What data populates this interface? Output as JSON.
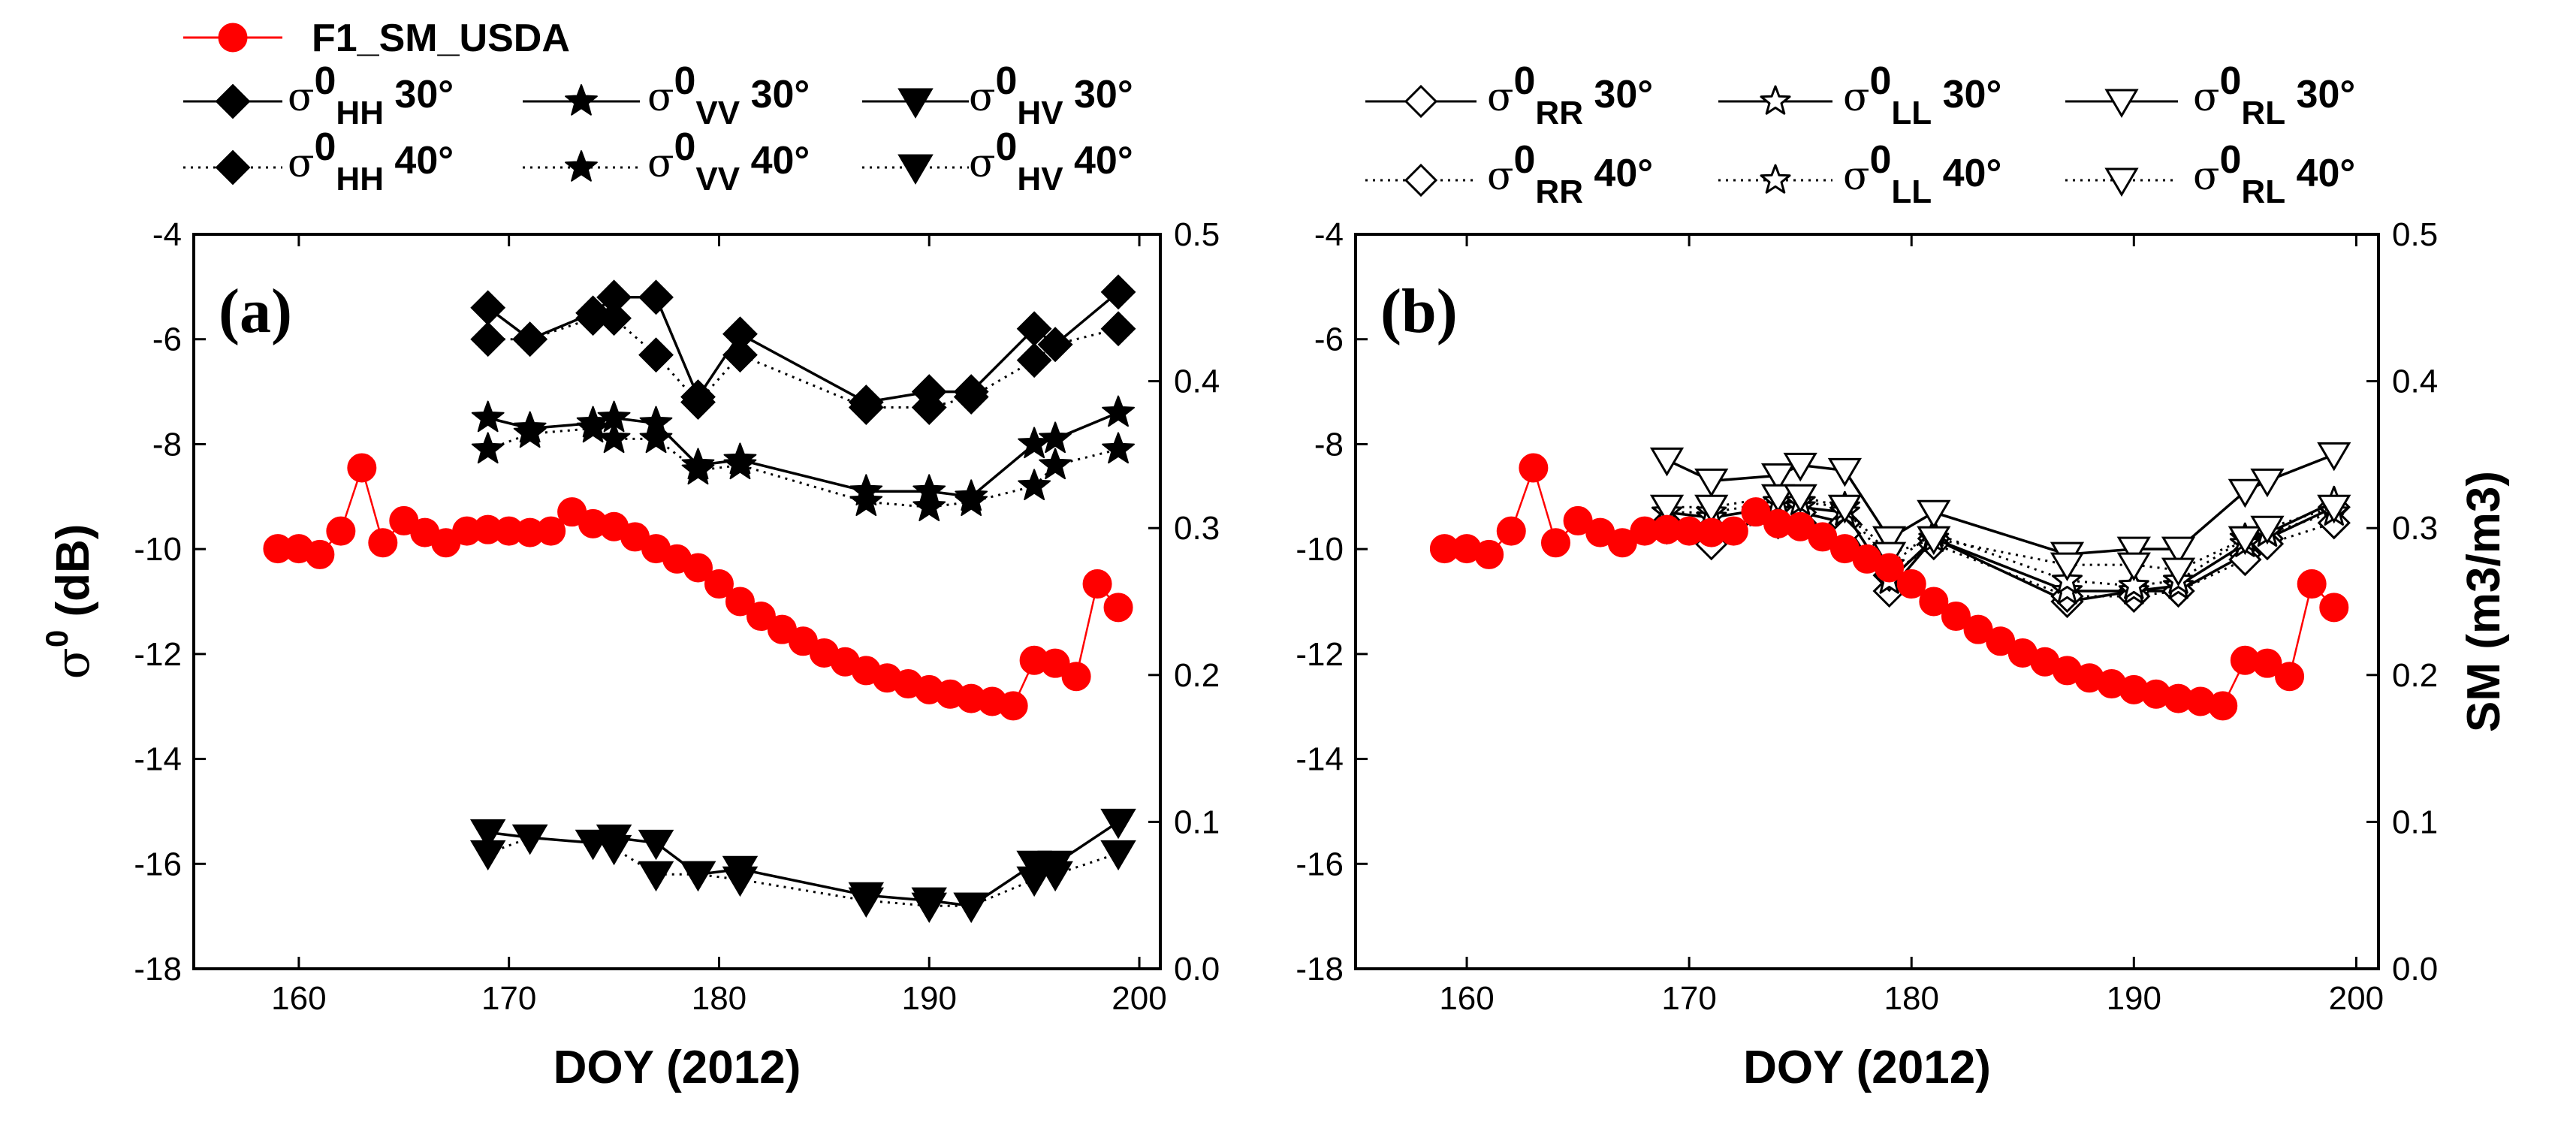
{
  "chart_data": [
    {
      "type": "line",
      "panel_label": "(a)",
      "xlabel": "DOY (2012)",
      "ylabel": "σ0 (dB)",
      "ylabel_base": "σ",
      "ylabel_sup": "0",
      "ylabel_unit": " (dB)",
      "y2label": "",
      "xlim": [
        155,
        201
      ],
      "ylim": [
        -18,
        -4
      ],
      "y2lim": [
        0.0,
        0.5
      ],
      "xticks": [
        "160",
        "170",
        "180",
        "190",
        "200"
      ],
      "yticks": [
        "-18",
        "-16",
        "-14",
        "-12",
        "-10",
        "-8",
        "-6",
        "-4"
      ],
      "y2ticks": [
        "0.0",
        "0.1",
        "0.2",
        "0.3",
        "0.4",
        "0.5"
      ],
      "legend": {
        "f1": "F1_SM_USDA",
        "base": "σ",
        "sup": "0",
        "hh": "HH",
        "vv": "VV",
        "hv": "HV",
        "angle30": "30°",
        "angle40": "40°"
      },
      "series": [
        {
          "name": "σ0HH 30°",
          "marker": "diamond",
          "style": "solid",
          "x": [
            169,
            171,
            174,
            175,
            177,
            179,
            181,
            187,
            190,
            192,
            195,
            196,
            199
          ],
          "y": [
            -5.4,
            -6.0,
            -5.5,
            -5.2,
            -5.2,
            -7.1,
            -5.9,
            -7.2,
            -7.0,
            -7.0,
            -5.8,
            -6.1,
            -5.1
          ]
        },
        {
          "name": "σ0HH 40°",
          "marker": "diamond",
          "style": "dotted",
          "x": [
            169,
            171,
            174,
            175,
            177,
            179,
            181,
            187,
            190,
            192,
            195,
            196,
            199
          ],
          "y": [
            -6.0,
            -6.0,
            -5.6,
            -5.6,
            -6.3,
            -7.2,
            -6.3,
            -7.3,
            -7.3,
            -7.1,
            -6.4,
            -6.1,
            -5.8
          ]
        },
        {
          "name": "σ0VV 30°",
          "marker": "star",
          "style": "solid",
          "x": [
            169,
            171,
            174,
            175,
            177,
            179,
            181,
            187,
            190,
            192,
            195,
            196,
            199
          ],
          "y": [
            -7.5,
            -7.7,
            -7.6,
            -7.5,
            -7.6,
            -8.4,
            -8.3,
            -8.9,
            -8.9,
            -9.0,
            -8.0,
            -7.9,
            -7.4
          ]
        },
        {
          "name": "σ0VV 40°",
          "marker": "star",
          "style": "dotted",
          "x": [
            169,
            171,
            174,
            175,
            177,
            179,
            181,
            187,
            190,
            192,
            195,
            196,
            199
          ],
          "y": [
            -8.1,
            -7.8,
            -7.7,
            -7.9,
            -7.9,
            -8.5,
            -8.4,
            -9.1,
            -9.2,
            -9.1,
            -8.8,
            -8.4,
            -8.1
          ]
        },
        {
          "name": "σ0HV 30°",
          "marker": "triangle-down",
          "style": "solid",
          "x": [
            169,
            171,
            174,
            175,
            177,
            179,
            181,
            187,
            190,
            192,
            195,
            196,
            199
          ],
          "y": [
            -15.4,
            -15.5,
            -15.6,
            -15.5,
            -15.6,
            -16.2,
            -16.1,
            -16.6,
            -16.7,
            -16.8,
            -16.0,
            -16.0,
            -15.2
          ]
        },
        {
          "name": "σ0HV 40°",
          "marker": "triangle-down",
          "style": "dotted",
          "x": [
            169,
            171,
            174,
            175,
            177,
            179,
            181,
            187,
            190,
            192,
            195,
            196,
            199
          ],
          "y": [
            -15.8,
            -15.5,
            -15.6,
            -15.7,
            -16.2,
            -16.2,
            -16.3,
            -16.7,
            -16.8,
            -16.8,
            -16.3,
            -16.2,
            -15.8
          ]
        },
        {
          "name": "F1_SM_USDA",
          "marker": "circle",
          "style": "solid",
          "axis": "right",
          "color": "#ff0000",
          "x": [
            159,
            160,
            161,
            162,
            163,
            164,
            165,
            166,
            167,
            168,
            169,
            170,
            171,
            172,
            173,
            174,
            175,
            176,
            177,
            178,
            179,
            180,
            181,
            182,
            183,
            184,
            185,
            186,
            187,
            188,
            189,
            190,
            191,
            192,
            193,
            194,
            195,
            196,
            197,
            198,
            199
          ],
          "y": [
            0.286,
            0.286,
            0.282,
            0.298,
            0.341,
            0.29,
            0.305,
            0.297,
            0.29,
            0.298,
            0.299,
            0.298,
            0.297,
            0.298,
            0.311,
            0.303,
            0.301,
            0.294,
            0.286,
            0.279,
            0.273,
            0.262,
            0.25,
            0.24,
            0.231,
            0.223,
            0.215,
            0.209,
            0.203,
            0.198,
            0.194,
            0.19,
            0.187,
            0.184,
            0.182,
            0.179,
            0.21,
            0.208,
            0.199,
            0.262,
            0.246
          ]
        }
      ]
    },
    {
      "type": "line",
      "panel_label": "(b)",
      "xlabel": "DOY (2012)",
      "ylabel": "",
      "y2label": "SM (m3/m3)",
      "xlim": [
        155,
        201
      ],
      "ylim": [
        -18,
        -4
      ],
      "y2lim": [
        0.0,
        0.5
      ],
      "xticks": [
        "160",
        "170",
        "180",
        "190",
        "200"
      ],
      "yticks": [
        "-18",
        "-16",
        "-14",
        "-12",
        "-10",
        "-8",
        "-6",
        "-4"
      ],
      "y2ticks": [
        "0.0",
        "0.1",
        "0.2",
        "0.3",
        "0.4",
        "0.5"
      ],
      "legend": {
        "base": "σ",
        "sup": "0",
        "rr": "RR",
        "ll": "LL",
        "rl": "RL",
        "angle30": "30°",
        "angle40": "40°"
      },
      "series": [
        {
          "name": "σ0RR 30°",
          "marker": "diamond-open",
          "style": "solid",
          "x": [
            169,
            171,
            174,
            175,
            177,
            179,
            181,
            187,
            190,
            192,
            195,
            196,
            199
          ],
          "y": [
            -9.5,
            -9.9,
            -9.2,
            -9.3,
            -9.5,
            -10.8,
            -9.8,
            -11.0,
            -10.8,
            -10.8,
            -10.1,
            -9.8,
            -9.2
          ]
        },
        {
          "name": "σ0RR 40°",
          "marker": "diamond-open",
          "style": "dotted",
          "x": [
            169,
            171,
            174,
            175,
            177,
            179,
            181,
            187,
            190,
            192,
            195,
            196,
            199
          ],
          "y": [
            -9.6,
            -9.6,
            -9.5,
            -9.5,
            -9.7,
            -10.5,
            -9.9,
            -10.9,
            -10.9,
            -10.8,
            -10.2,
            -9.9,
            -9.5
          ]
        },
        {
          "name": "σ0LL 30°",
          "marker": "star-open",
          "style": "solid",
          "x": [
            169,
            171,
            174,
            175,
            177,
            179,
            181,
            187,
            190,
            192,
            195,
            196,
            199
          ],
          "y": [
            -9.3,
            -9.4,
            -9.2,
            -9.2,
            -9.3,
            -10.6,
            -9.8,
            -10.8,
            -10.8,
            -10.7,
            -9.9,
            -9.7,
            -9.1
          ]
        },
        {
          "name": "σ0LL 40°",
          "marker": "star-open",
          "style": "dotted",
          "x": [
            169,
            171,
            174,
            175,
            177,
            179,
            181,
            187,
            190,
            192,
            195,
            196,
            199
          ],
          "y": [
            -9.3,
            -9.3,
            -9.1,
            -9.1,
            -9.2,
            -10.3,
            -9.7,
            -10.6,
            -10.7,
            -10.6,
            -9.8,
            -9.7,
            -9.3
          ]
        },
        {
          "name": "σ0RL 30°",
          "marker": "triangle-down-open",
          "style": "solid",
          "x": [
            169,
            171,
            174,
            175,
            177,
            179,
            181,
            187,
            190,
            192,
            195,
            196,
            199
          ],
          "y": [
            -8.3,
            -8.7,
            -8.6,
            -8.4,
            -8.5,
            -9.8,
            -9.3,
            -10.1,
            -10.0,
            -10.0,
            -8.9,
            -8.7,
            -8.2
          ]
        },
        {
          "name": "σ0RL 40°",
          "marker": "triangle-down-open",
          "style": "dotted",
          "x": [
            169,
            171,
            174,
            175,
            177,
            179,
            181,
            187,
            190,
            192,
            195,
            196,
            199
          ],
          "y": [
            -9.2,
            -9.2,
            -9.0,
            -9.0,
            -9.2,
            -10.1,
            -9.8,
            -10.3,
            -10.3,
            -10.4,
            -9.8,
            -9.6,
            -9.2
          ]
        },
        {
          "name": "F1_SM_USDA",
          "marker": "circle",
          "style": "solid",
          "axis": "right",
          "color": "#ff0000",
          "x": [
            159,
            160,
            161,
            162,
            163,
            164,
            165,
            166,
            167,
            168,
            169,
            170,
            171,
            172,
            173,
            174,
            175,
            176,
            177,
            178,
            179,
            180,
            181,
            182,
            183,
            184,
            185,
            186,
            187,
            188,
            189,
            190,
            191,
            192,
            193,
            194,
            195,
            196,
            197,
            198,
            199
          ],
          "y": [
            0.286,
            0.286,
            0.282,
            0.298,
            0.341,
            0.29,
            0.305,
            0.297,
            0.29,
            0.298,
            0.299,
            0.298,
            0.297,
            0.298,
            0.311,
            0.303,
            0.301,
            0.294,
            0.286,
            0.279,
            0.273,
            0.262,
            0.25,
            0.24,
            0.231,
            0.223,
            0.215,
            0.209,
            0.203,
            0.198,
            0.194,
            0.19,
            0.187,
            0.184,
            0.182,
            0.179,
            0.21,
            0.208,
            0.199,
            0.262,
            0.246
          ]
        }
      ]
    }
  ]
}
